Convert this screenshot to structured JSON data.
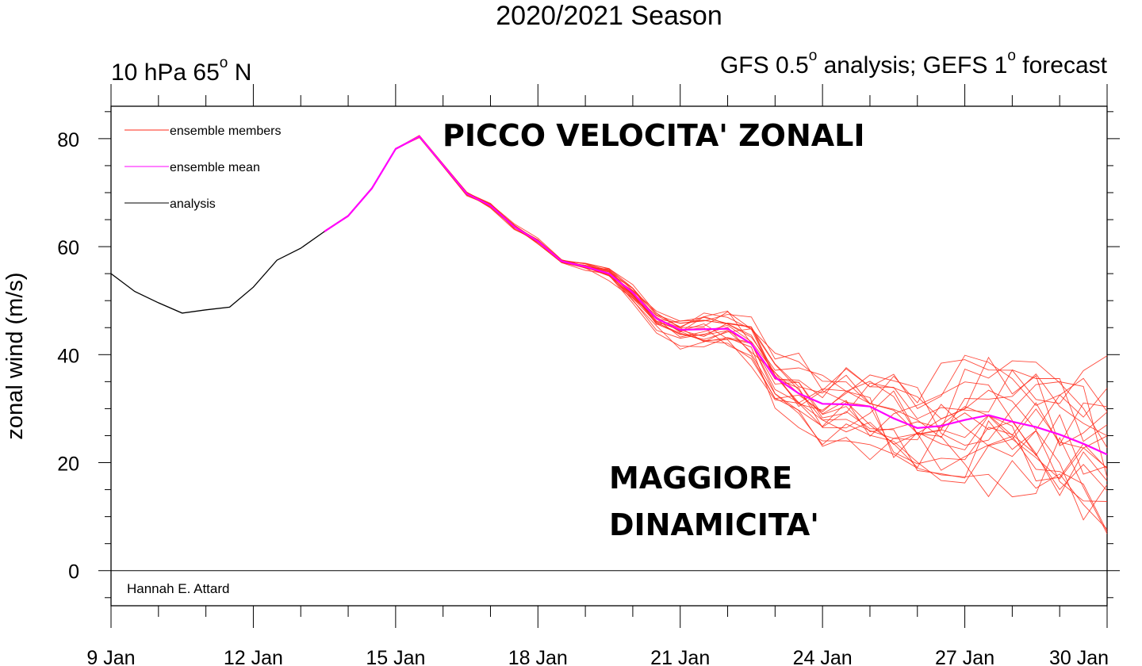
{
  "title": "2020/2021 Season",
  "subtitle_left": {
    "text": "10 hPa 65",
    "sup": "o",
    "suffix": " N"
  },
  "subtitle_right": {
    "p1": "GFS 0.5",
    "s1": "o",
    "p2": " analysis; GEFS 1",
    "s2": "o",
    "p3": " forecast"
  },
  "annotation_peak": "PICCO VELOCITA' ZONALI",
  "annotation_dyn_1": "MAGGIORE",
  "annotation_dyn_2": "DINAMICITA'",
  "credit": "Hannah E. Attard",
  "colors": {
    "members": "#ff2a1a",
    "mean": "#ff00ff",
    "analysis": "#000000"
  },
  "chart_data": {
    "type": "line",
    "ylabel": "zonal wind (m/s)",
    "xlabel": "",
    "x_unit": "days (0 = 9 Jan)",
    "xlim": [
      0,
      21
    ],
    "ylim": [
      -6.5,
      86
    ],
    "x_ticks": [
      {
        "x": 0,
        "label": "9 Jan"
      },
      {
        "x": 3,
        "label": "12 Jan"
      },
      {
        "x": 6,
        "label": "15 Jan"
      },
      {
        "x": 9,
        "label": "18 Jan"
      },
      {
        "x": 12,
        "label": "21 Jan"
      },
      {
        "x": 15,
        "label": "24 Jan"
      },
      {
        "x": 18,
        "label": "27 Jan"
      },
      {
        "x": 21,
        "label": "30 Jan"
      }
    ],
    "y_ticks": [
      0,
      20,
      40,
      60,
      80
    ],
    "zero_line": 0,
    "legend": {
      "position": "top-left",
      "entries": [
        {
          "label": "ensemble members",
          "key": "members"
        },
        {
          "label": "ensemble mean",
          "key": "mean"
        },
        {
          "label": "analysis",
          "key": "analysis"
        }
      ]
    },
    "analysis": {
      "x": [
        0,
        0.5,
        1,
        1.5,
        2,
        2.5,
        3,
        3.5,
        4,
        4.5
      ],
      "y": [
        55,
        51.7,
        49.6,
        47.7,
        48.3,
        48.8,
        52.5,
        57.5,
        59.7,
        62.8
      ]
    },
    "mean_x": [
      4.5,
      5,
      5.5,
      6,
      6.5,
      7.5,
      8,
      8.5,
      9,
      9.5,
      10,
      10.5,
      11,
      11.5,
      12,
      12.5,
      13,
      13.5,
      14,
      14.5,
      15,
      15.5,
      16,
      16.5,
      17,
      17.5,
      18,
      18.5,
      19,
      19.5,
      20,
      20.5,
      21
    ],
    "mean_y": [
      62.8,
      65.7,
      70.8,
      78.1,
      80.4,
      69.8,
      67.6,
      63.7,
      61.0,
      57.3,
      56.3,
      55.0,
      51.5,
      46.7,
      44.6,
      44.7,
      44.8,
      42.0,
      35.8,
      32.8,
      30.9,
      30.8,
      30.4,
      28.2,
      26.4,
      26.8,
      27.9,
      28.8,
      27.6,
      26.6,
      25.2,
      23.5,
      21.5
    ],
    "member_amplitude_growth": "spread grows from ~0 at 15 Jan to ~20 m/s at 30 Jan",
    "member_count": 20
  }
}
